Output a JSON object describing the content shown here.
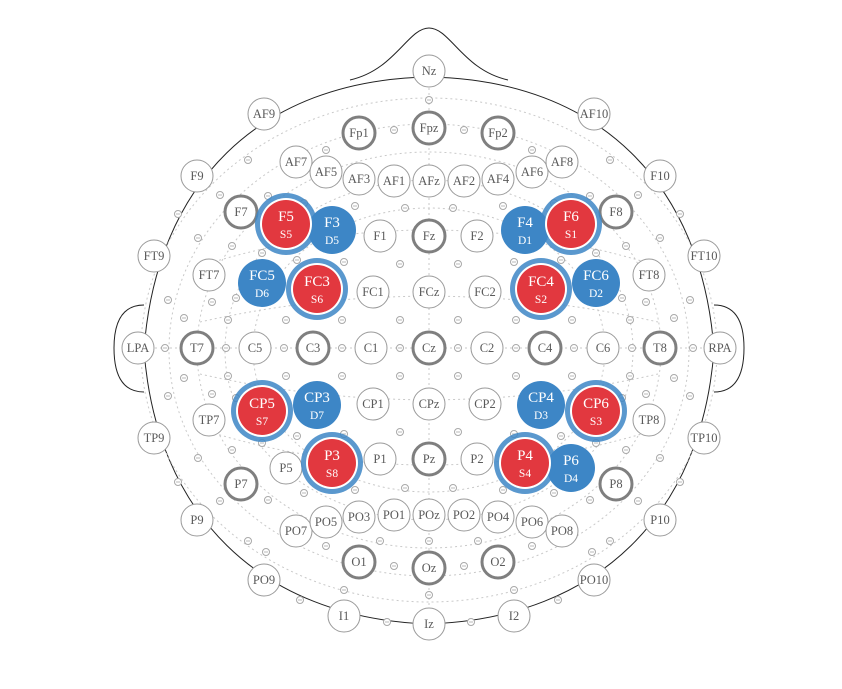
{
  "montage": {
    "colors": {
      "source": "#e2383f",
      "detector": "#3d86c6",
      "ring": "#9a9a9a",
      "bold_ring": "#7f7f7f",
      "grid": "#c9c9c9",
      "label": "#5a5a5a"
    },
    "electrodes": [
      {
        "label": "Nz"
      },
      {
        "label": "Fpz",
        "bold": true
      },
      {
        "label": "Fp1",
        "bold": true
      },
      {
        "label": "Fp2",
        "bold": true
      },
      {
        "label": "AF9"
      },
      {
        "label": "AF10"
      },
      {
        "label": "AF7"
      },
      {
        "label": "AF5"
      },
      {
        "label": "AF3"
      },
      {
        "label": "AF1"
      },
      {
        "label": "AFz"
      },
      {
        "label": "AF2"
      },
      {
        "label": "AF4"
      },
      {
        "label": "AF6"
      },
      {
        "label": "AF8"
      },
      {
        "label": "F9"
      },
      {
        "label": "F10"
      },
      {
        "label": "F7",
        "bold": true
      },
      {
        "label": "F8",
        "bold": true
      },
      {
        "label": "F5"
      },
      {
        "label": "F3"
      },
      {
        "label": "F1"
      },
      {
        "label": "Fz",
        "bold": true
      },
      {
        "label": "F2"
      },
      {
        "label": "F4"
      },
      {
        "label": "F6"
      },
      {
        "label": "FT9"
      },
      {
        "label": "FT10"
      },
      {
        "label": "FT7"
      },
      {
        "label": "FT8"
      },
      {
        "label": "FC5"
      },
      {
        "label": "FC3"
      },
      {
        "label": "FC1"
      },
      {
        "label": "FCz"
      },
      {
        "label": "FC2"
      },
      {
        "label": "FC4"
      },
      {
        "label": "FC6"
      },
      {
        "label": "LPA"
      },
      {
        "label": "RPA"
      },
      {
        "label": "T7",
        "bold": true
      },
      {
        "label": "T8",
        "bold": true
      },
      {
        "label": "C5"
      },
      {
        "label": "C3",
        "bold": true
      },
      {
        "label": "C1"
      },
      {
        "label": "Cz",
        "bold": true
      },
      {
        "label": "C2"
      },
      {
        "label": "C4",
        "bold": true
      },
      {
        "label": "C6"
      },
      {
        "label": "TP9"
      },
      {
        "label": "TP10"
      },
      {
        "label": "TP7"
      },
      {
        "label": "TP8"
      },
      {
        "label": "CP5"
      },
      {
        "label": "CP3"
      },
      {
        "label": "CP1"
      },
      {
        "label": "CPz"
      },
      {
        "label": "CP2"
      },
      {
        "label": "CP4"
      },
      {
        "label": "CP6"
      },
      {
        "label": "P9"
      },
      {
        "label": "P10"
      },
      {
        "label": "P7",
        "bold": true
      },
      {
        "label": "P8",
        "bold": true
      },
      {
        "label": "P5"
      },
      {
        "label": "P3"
      },
      {
        "label": "P1"
      },
      {
        "label": "Pz",
        "bold": true
      },
      {
        "label": "P2"
      },
      {
        "label": "P4"
      },
      {
        "label": "P6"
      },
      {
        "label": "PO9"
      },
      {
        "label": "PO10"
      },
      {
        "label": "PO7"
      },
      {
        "label": "PO5"
      },
      {
        "label": "PO3"
      },
      {
        "label": "PO1"
      },
      {
        "label": "POz"
      },
      {
        "label": "PO2"
      },
      {
        "label": "PO4"
      },
      {
        "label": "PO6"
      },
      {
        "label": "PO8"
      },
      {
        "label": "O1",
        "bold": true
      },
      {
        "label": "Oz",
        "bold": true
      },
      {
        "label": "O2",
        "bold": true
      },
      {
        "label": "I1"
      },
      {
        "label": "Iz"
      },
      {
        "label": "I2"
      }
    ],
    "optodes": [
      {
        "at": "F5",
        "type": "source",
        "label": "F5",
        "id": "S5"
      },
      {
        "at": "F3",
        "type": "detector",
        "label": "F3",
        "id": "D5"
      },
      {
        "at": "F4",
        "type": "detector",
        "label": "F4",
        "id": "D1"
      },
      {
        "at": "F6",
        "type": "source",
        "label": "F6",
        "id": "S1"
      },
      {
        "at": "FC5",
        "type": "detector",
        "label": "FC5",
        "id": "D6"
      },
      {
        "at": "FC3",
        "type": "source",
        "label": "FC3",
        "id": "S6"
      },
      {
        "at": "FC4",
        "type": "source",
        "label": "FC4",
        "id": "S2"
      },
      {
        "at": "FC6",
        "type": "detector",
        "label": "FC6",
        "id": "D2"
      },
      {
        "at": "CP5",
        "type": "source",
        "label": "CP5",
        "id": "S7"
      },
      {
        "at": "CP3",
        "type": "detector",
        "label": "CP3",
        "id": "D7"
      },
      {
        "at": "CP4",
        "type": "detector",
        "label": "CP4",
        "id": "D3"
      },
      {
        "at": "CP6",
        "type": "source",
        "label": "CP6",
        "id": "S3"
      },
      {
        "at": "P3",
        "type": "source",
        "label": "P3",
        "id": "S8"
      },
      {
        "at": "P4",
        "type": "source",
        "label": "P4",
        "id": "S4"
      },
      {
        "at": "P6",
        "type": "detector",
        "label": "P6",
        "id": "D4"
      }
    ]
  }
}
